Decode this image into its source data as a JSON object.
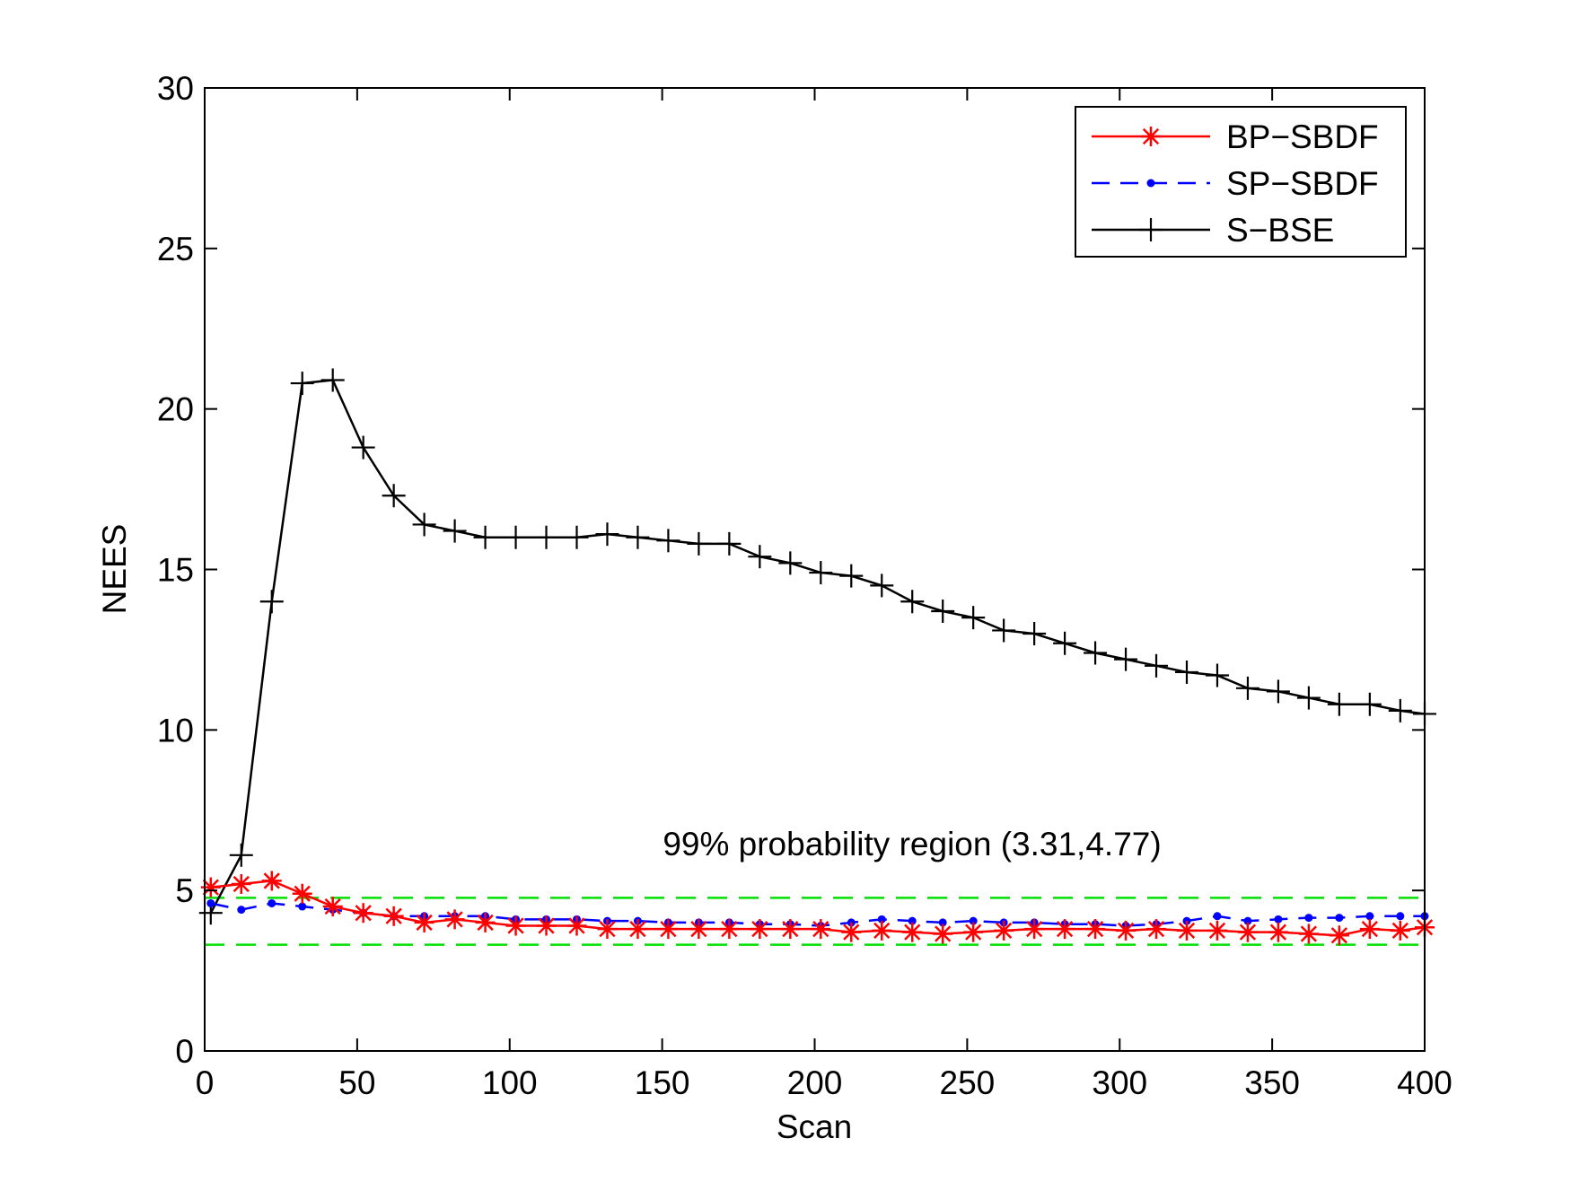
{
  "chart_data": {
    "type": "line",
    "title": "",
    "xlabel": "Scan",
    "ylabel": "NEES",
    "xlim": [
      0,
      400
    ],
    "ylim": [
      0,
      30
    ],
    "xticks": [
      0,
      50,
      100,
      150,
      200,
      250,
      300,
      350,
      400
    ],
    "yticks": [
      0,
      5,
      10,
      15,
      20,
      25,
      30
    ],
    "grid": false,
    "legend_position": "top-right",
    "annotation": "99% probability region (3.31,4.77)",
    "bounds": [
      3.31,
      4.77
    ],
    "bounds_color": "#00e000",
    "x": [
      2,
      12,
      22,
      32,
      42,
      52,
      62,
      72,
      82,
      92,
      102,
      112,
      122,
      132,
      142,
      152,
      162,
      172,
      182,
      192,
      202,
      212,
      222,
      232,
      242,
      252,
      262,
      272,
      282,
      292,
      302,
      312,
      322,
      332,
      342,
      352,
      362,
      372,
      382,
      392,
      400
    ],
    "series": [
      {
        "name": "BP−SBDF",
        "color": "#ff0000",
        "line": "solid",
        "marker": "asterisk",
        "values": [
          5.1,
          5.2,
          5.3,
          4.9,
          4.5,
          4.3,
          4.2,
          4.0,
          4.1,
          4.0,
          3.9,
          3.9,
          3.9,
          3.8,
          3.8,
          3.8,
          3.8,
          3.8,
          3.8,
          3.8,
          3.8,
          3.7,
          3.75,
          3.7,
          3.65,
          3.7,
          3.75,
          3.8,
          3.8,
          3.8,
          3.75,
          3.8,
          3.75,
          3.75,
          3.7,
          3.7,
          3.65,
          3.6,
          3.8,
          3.75,
          3.85
        ]
      },
      {
        "name": "SP−SBDF",
        "color": "#0000ff",
        "line": "dashed",
        "marker": "dot",
        "values": [
          4.6,
          4.4,
          4.6,
          4.5,
          4.4,
          4.3,
          4.2,
          4.2,
          4.2,
          4.2,
          4.1,
          4.1,
          4.1,
          4.05,
          4.05,
          4.0,
          4.0,
          4.0,
          3.95,
          3.95,
          3.9,
          4.0,
          4.1,
          4.05,
          4.0,
          4.05,
          4.0,
          4.0,
          3.95,
          3.95,
          3.9,
          3.95,
          4.05,
          4.2,
          4.05,
          4.1,
          4.15,
          4.15,
          4.2,
          4.2,
          4.2
        ]
      },
      {
        "name": "S−BSE",
        "color": "#000000",
        "line": "solid",
        "marker": "plus",
        "values": [
          4.3,
          6.1,
          14.0,
          20.8,
          20.9,
          18.8,
          17.3,
          16.4,
          16.2,
          16.0,
          16.0,
          16.0,
          16.0,
          16.1,
          16.0,
          15.9,
          15.8,
          15.8,
          15.4,
          15.2,
          14.9,
          14.8,
          14.5,
          14.0,
          13.7,
          13.5,
          13.1,
          13.0,
          12.7,
          12.4,
          12.2,
          12.0,
          11.8,
          11.7,
          11.3,
          11.2,
          11.0,
          10.8,
          10.8,
          10.6,
          10.5
        ]
      }
    ]
  }
}
